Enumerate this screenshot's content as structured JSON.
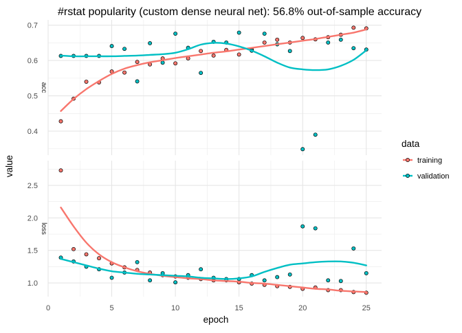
{
  "chart_data": {
    "type": "scatter",
    "title": "#rstat popularity (custom dense neural net): 56.8% out-of-sample accuracy",
    "xlabel": "epoch",
    "ylabel": "value",
    "x_ticks": [
      0,
      5,
      10,
      15,
      20,
      25
    ],
    "xlim": [
      0,
      26.2
    ],
    "grid": true,
    "legend": {
      "title": "data",
      "placement": "right",
      "entries": [
        {
          "label": "training",
          "color": "#F8766D"
        },
        {
          "label": "validation",
          "color": "#00BFC4"
        }
      ]
    },
    "panels": [
      {
        "strip_label": "acc",
        "ylim": [
          0.332,
          0.715
        ],
        "y_ticks": [
          0.4,
          0.5,
          0.6,
          0.7
        ],
        "y_tick_labels": [
          "0.4",
          "0.5",
          "0.6",
          "0.7"
        ],
        "series": [
          {
            "name": "training",
            "color": "#F8766D",
            "x": [
              1,
              2,
              3,
              4,
              5,
              6,
              7,
              8,
              9,
              10,
              11,
              12,
              13,
              14,
              15,
              16,
              17,
              18,
              19,
              20,
              21,
              22,
              23,
              24,
              25
            ],
            "values": [
              0.428,
              0.492,
              0.54,
              0.538,
              0.569,
              0.566,
              0.596,
              0.589,
              0.606,
              0.592,
              0.606,
              0.627,
              0.614,
              0.63,
              0.617,
              0.631,
              0.651,
              0.659,
              0.651,
              0.664,
              0.66,
              0.666,
              0.673,
              0.693,
              0.691
            ],
            "smooth": [
              0.457,
              0.491,
              0.519,
              0.542,
              0.562,
              0.577,
              0.587,
              0.595,
              0.601,
              0.607,
              0.612,
              0.617,
              0.622,
              0.626,
              0.631,
              0.636,
              0.641,
              0.646,
              0.651,
              0.656,
              0.661,
              0.667,
              0.673,
              0.679,
              0.688
            ]
          },
          {
            "name": "validation",
            "color": "#00BFC4",
            "x": [
              1,
              2,
              3,
              4,
              5,
              6,
              7,
              8,
              9,
              10,
              11,
              12,
              13,
              14,
              15,
              16,
              17,
              18,
              19,
              20,
              21,
              22,
              23,
              24,
              25
            ],
            "values": [
              0.613,
              0.613,
              0.613,
              0.613,
              0.641,
              0.633,
              0.541,
              0.649,
              0.594,
              0.676,
              0.636,
              0.565,
              0.653,
              0.651,
              0.679,
              0.628,
              0.676,
              0.646,
              0.627,
              0.349,
              0.39,
              0.651,
              0.659,
              0.635,
              0.631
            ],
            "smooth": [
              0.614,
              0.612,
              0.612,
              0.612,
              0.612,
              0.613,
              0.614,
              0.616,
              0.618,
              0.622,
              0.632,
              0.645,
              0.65,
              0.648,
              0.64,
              0.628,
              0.612,
              0.594,
              0.58,
              0.575,
              0.573,
              0.575,
              0.585,
              0.602,
              0.629
            ]
          }
        ]
      },
      {
        "strip_label": "loss",
        "ylim": [
          0.79,
          2.88
        ],
        "y_ticks": [
          1.0,
          1.5,
          2.0,
          2.5
        ],
        "y_tick_labels": [
          "1.0",
          "1.5",
          "2.0",
          "2.5"
        ],
        "series": [
          {
            "name": "training",
            "color": "#F8766D",
            "x": [
              1,
              2,
              3,
              4,
              5,
              6,
              7,
              8,
              9,
              10,
              11,
              12,
              13,
              14,
              15,
              16,
              17,
              18,
              19,
              20,
              21,
              22,
              23,
              24,
              25
            ],
            "values": [
              2.73,
              1.52,
              1.44,
              1.38,
              1.3,
              1.24,
              1.2,
              1.16,
              1.12,
              1.1,
              1.08,
              1.06,
              1.04,
              1.04,
              1.01,
              0.99,
              0.97,
              0.95,
              0.94,
              0.91,
              0.93,
              0.89,
              0.89,
              0.86,
              0.85
            ],
            "smooth": [
              2.16,
              1.87,
              1.62,
              1.44,
              1.32,
              1.24,
              1.18,
              1.14,
              1.11,
              1.09,
              1.07,
              1.06,
              1.04,
              1.03,
              1.02,
              1.0,
              0.99,
              0.97,
              0.95,
              0.93,
              0.91,
              0.9,
              0.88,
              0.87,
              0.86
            ]
          },
          {
            "name": "validation",
            "color": "#00BFC4",
            "x": [
              1,
              2,
              3,
              4,
              5,
              6,
              7,
              8,
              9,
              10,
              11,
              12,
              13,
              14,
              15,
              16,
              17,
              18,
              19,
              20,
              21,
              22,
              23,
              24,
              25
            ],
            "values": [
              1.39,
              1.33,
              1.25,
              1.21,
              1.08,
              1.16,
              1.32,
              1.04,
              1.15,
              1.01,
              1.12,
              1.21,
              1.08,
              1.06,
              1.06,
              1.12,
              1.04,
              1.09,
              1.13,
              1.87,
              1.84,
              1.04,
              1.03,
              1.53,
              1.15
            ],
            "smooth": [
              1.37,
              1.32,
              1.27,
              1.22,
              1.18,
              1.16,
              1.14,
              1.13,
              1.12,
              1.11,
              1.1,
              1.08,
              1.07,
              1.06,
              1.07,
              1.1,
              1.17,
              1.23,
              1.28,
              1.3,
              1.32,
              1.33,
              1.33,
              1.31,
              1.27
            ]
          }
        ]
      }
    ]
  }
}
